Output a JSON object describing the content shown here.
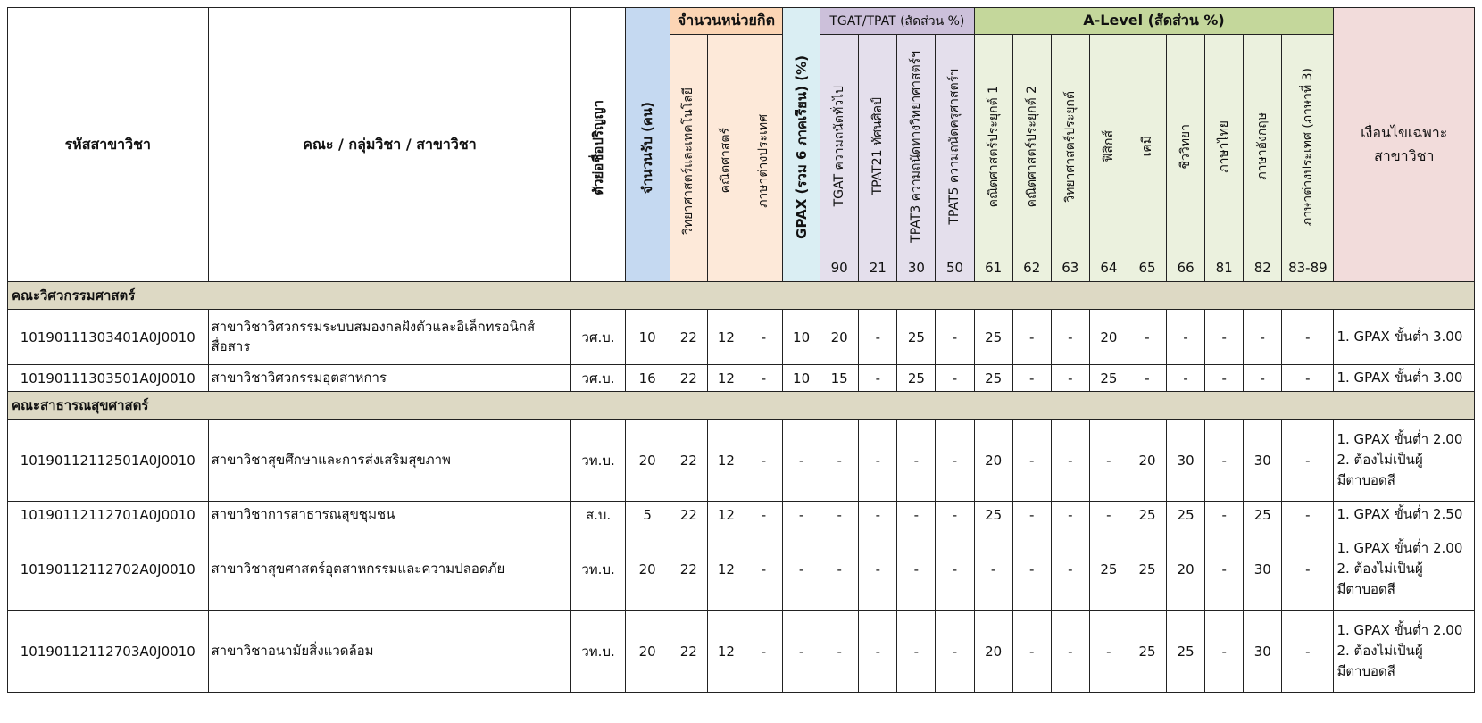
{
  "headers": {
    "code": "รหัสสาขาวิชา",
    "program": "คณะ / กลุ่มวิชา / สาขาวิชา",
    "degree_abbr": "ตัวย่อชื่อปริญญา",
    "seats": "จำนวนรับ (คน)",
    "credits_group": "จำนวนหน่วยกิต",
    "credit_sci": "วิทยาศาสตร์และเทคโนโลยี",
    "credit_math": "คณิตศาสตร์",
    "credit_lang": "ภาษาต่างประเทศ",
    "gpax": "GPAX (รวม 6 ภาคเรียน) (%)",
    "tgat_group": "TGAT/TPAT (สัดส่วน %)",
    "tgat90": "TGAT  ความถนัดทั่วไป",
    "tpat21": "TPAT21  ทัศนศิลป์",
    "tpat3": "TPAT3  ความถนัดทางวิทยาศาสตร์ฯ",
    "tpat5": "TPAT5  ความถนัดครุศาสตร์ฯ",
    "alevel_group": "A-Level (สัดส่วน %)",
    "al61": "คณิตศาสตร์ประยุกต์ 1",
    "al62": "คณิตศาสตร์ประยุกต์ 2",
    "al63": "วิทยาศาสตร์ประยุกต์",
    "al64": "ฟิสิกส์",
    "al65": "เคมี",
    "al66": "ชีววิทยา",
    "al81": "ภาษาไทย",
    "al82": "ภาษาอังกฤษ",
    "al83": "ภาษาต่างประเทศ (ภาษาที่ 3)",
    "condition": "เงื่อนไขเฉพาะสาขาวิชา",
    "codes": [
      "90",
      "21",
      "30",
      "50",
      "61",
      "62",
      "63",
      "64",
      "65",
      "66",
      "81",
      "82",
      "83-89"
    ]
  },
  "sections": [
    {
      "faculty": "คณะวิศวกรรมศาสตร์",
      "rows": [
        {
          "code": "10190111303401A0J0010",
          "name": "สาขาวิชาวิศวกรรมระบบสมองกลฝังตัวและอิเล็กทรอนิกส์สื่อสาร",
          "degree": "วศ.บ.",
          "seats": "10",
          "c_sci": "22",
          "c_math": "12",
          "c_lang": "-",
          "gpax": "10",
          "tgat": "20",
          "tpat21": "-",
          "tpat3": "25",
          "tpat5": "-",
          "a61": "25",
          "a62": "-",
          "a63": "-",
          "a64": "20",
          "a65": "-",
          "a66": "-",
          "a81": "-",
          "a82": "-",
          "a83": "-",
          "cond": [
            "1. GPAX ขั้นต่ำ 3.00"
          ]
        },
        {
          "code": "10190111303501A0J0010",
          "name": "สาขาวิชาวิศวกรรมอุตสาหการ",
          "degree": "วศ.บ.",
          "seats": "16",
          "c_sci": "22",
          "c_math": "12",
          "c_lang": "-",
          "gpax": "10",
          "tgat": "15",
          "tpat21": "-",
          "tpat3": "25",
          "tpat5": "-",
          "a61": "25",
          "a62": "-",
          "a63": "-",
          "a64": "25",
          "a65": "-",
          "a66": "-",
          "a81": "-",
          "a82": "-",
          "a83": "-",
          "cond": [
            "1. GPAX ขั้นต่ำ 3.00"
          ]
        }
      ]
    },
    {
      "faculty": "คณะสาธารณสุขศาสตร์",
      "rows": [
        {
          "code": "10190112112501A0J0010",
          "name": "สาขาวิชาสุขศึกษาและการส่งเสริมสุขภาพ",
          "degree": "วท.บ.",
          "seats": "20",
          "c_sci": "22",
          "c_math": "12",
          "c_lang": "-",
          "gpax": "-",
          "tgat": "-",
          "tpat21": "-",
          "tpat3": "-",
          "tpat5": "-",
          "a61": "20",
          "a62": "-",
          "a63": "-",
          "a64": "-",
          "a65": "20",
          "a66": "30",
          "a81": "-",
          "a82": "30",
          "a83": "-",
          "cond": [
            "1. GPAX ขั้นต่ำ 2.00",
            "2. ต้องไม่เป็นผู้",
            "มีตาบอดสี"
          ]
        },
        {
          "code": "10190112112701A0J0010",
          "name": "สาขาวิชาการสาธารณสุขชุมชน",
          "degree": "ส.บ.",
          "seats": "5",
          "c_sci": "22",
          "c_math": "12",
          "c_lang": "-",
          "gpax": "-",
          "tgat": "-",
          "tpat21": "-",
          "tpat3": "-",
          "tpat5": "-",
          "a61": "25",
          "a62": "-",
          "a63": "-",
          "a64": "-",
          "a65": "25",
          "a66": "25",
          "a81": "-",
          "a82": "25",
          "a83": "-",
          "cond": [
            "1. GPAX ขั้นต่ำ 2.50"
          ]
        },
        {
          "code": "10190112112702A0J0010",
          "name": "สาขาวิชาสุขศาสตร์อุตสาหกรรมและความปลอดภัย",
          "degree": "วท.บ.",
          "seats": "20",
          "c_sci": "22",
          "c_math": "12",
          "c_lang": "-",
          "gpax": "-",
          "tgat": "-",
          "tpat21": "-",
          "tpat3": "-",
          "tpat5": "-",
          "a61": "-",
          "a62": "-",
          "a63": "-",
          "a64": "25",
          "a65": "25",
          "a66": "20",
          "a81": "-",
          "a82": "30",
          "a83": "-",
          "cond": [
            "1. GPAX ขั้นต่ำ 2.00",
            "2. ต้องไม่เป็นผู้",
            "มีตาบอดสี"
          ]
        },
        {
          "code": "10190112112703A0J0010",
          "name": "สาขาวิชาอนามัยสิ่งแวดล้อม",
          "degree": "วท.บ.",
          "seats": "20",
          "c_sci": "22",
          "c_math": "12",
          "c_lang": "-",
          "gpax": "-",
          "tgat": "-",
          "tpat21": "-",
          "tpat3": "-",
          "tpat5": "-",
          "a61": "20",
          "a62": "-",
          "a63": "-",
          "a64": "-",
          "a65": "25",
          "a66": "25",
          "a81": "-",
          "a82": "30",
          "a83": "-",
          "cond": [
            "1. GPAX ขั้นต่ำ 2.00",
            "2. ต้องไม่เป็นผู้",
            "มีตาบอดสี"
          ]
        }
      ]
    }
  ]
}
